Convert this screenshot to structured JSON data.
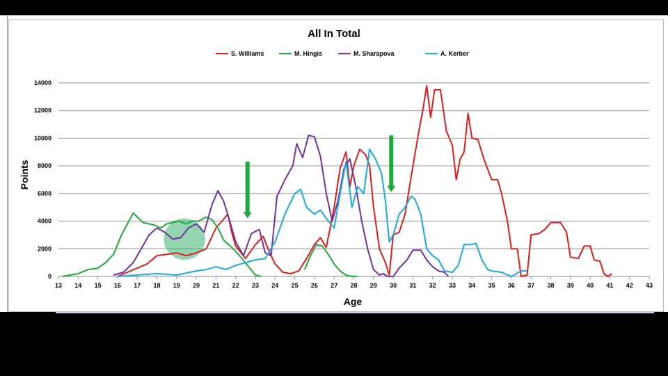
{
  "chart_data": {
    "type": "line",
    "title": "All In Total",
    "xlabel": "Age",
    "ylabel": "Points",
    "xlim": [
      13,
      43
    ],
    "ylim": [
      0,
      14000
    ],
    "x_ticks": [
      "13",
      "14",
      "15",
      "16",
      "17",
      "18",
      "19",
      "20",
      "21",
      "22",
      "23",
      "24",
      "25",
      "26",
      "27",
      "28",
      "29",
      "30",
      "31",
      "32",
      "33",
      "34",
      "35",
      "36",
      "37",
      "38",
      "39",
      "40",
      "41",
      "42",
      "43"
    ],
    "y_ticks": [
      "0",
      "2000",
      "4000",
      "6000",
      "8000",
      "10000",
      "12000",
      "14000"
    ],
    "grid": "horizontal",
    "legend_position": "top",
    "series": [
      {
        "name": "S. Williams",
        "color": "#e31a1c",
        "points": [
          [
            16.0,
            0
          ],
          [
            16.5,
            300
          ],
          [
            17.0,
            600
          ],
          [
            17.5,
            900
          ],
          [
            18.0,
            1500
          ],
          [
            18.5,
            1600
          ],
          [
            19.0,
            1700
          ],
          [
            19.5,
            1500
          ],
          [
            20.0,
            1700
          ],
          [
            20.5,
            2000
          ],
          [
            21.0,
            3500
          ],
          [
            21.3,
            4000
          ],
          [
            21.6,
            4500
          ],
          [
            21.8,
            3200
          ],
          [
            22.0,
            2200
          ],
          [
            22.5,
            1300
          ],
          [
            23.0,
            2300
          ],
          [
            23.4,
            2900
          ],
          [
            23.7,
            1800
          ],
          [
            24.0,
            900
          ],
          [
            24.4,
            300
          ],
          [
            24.8,
            200
          ],
          [
            25.2,
            400
          ],
          [
            25.6,
            1300
          ],
          [
            26.0,
            2300
          ],
          [
            26.3,
            2800
          ],
          [
            26.6,
            2100
          ],
          [
            27.0,
            5000
          ],
          [
            27.3,
            7800
          ],
          [
            27.6,
            9000
          ],
          [
            27.8,
            6500
          ],
          [
            28.0,
            8000
          ],
          [
            28.3,
            9200
          ],
          [
            28.6,
            8800
          ],
          [
            28.8,
            8000
          ],
          [
            29.0,
            5000
          ],
          [
            29.3,
            2000
          ],
          [
            29.6,
            1000
          ],
          [
            29.8,
            100
          ],
          [
            30.0,
            3000
          ],
          [
            30.3,
            3200
          ],
          [
            30.6,
            4500
          ],
          [
            31.0,
            8000
          ],
          [
            31.3,
            10500
          ],
          [
            31.5,
            12000
          ],
          [
            31.7,
            13800
          ],
          [
            31.9,
            11500
          ],
          [
            32.1,
            13500
          ],
          [
            32.4,
            13500
          ],
          [
            32.7,
            10500
          ],
          [
            33.0,
            9500
          ],
          [
            33.2,
            7000
          ],
          [
            33.4,
            8500
          ],
          [
            33.6,
            9000
          ],
          [
            33.8,
            11800
          ],
          [
            34.0,
            10000
          ],
          [
            34.3,
            9900
          ],
          [
            34.6,
            8500
          ],
          [
            35.0,
            7000
          ],
          [
            35.3,
            7000
          ],
          [
            35.5,
            6000
          ],
          [
            35.8,
            4000
          ],
          [
            36.0,
            2000
          ],
          [
            36.3,
            2000
          ],
          [
            36.5,
            0
          ],
          [
            36.8,
            100
          ],
          [
            37.0,
            3000
          ],
          [
            37.4,
            3100
          ],
          [
            37.7,
            3400
          ],
          [
            38.0,
            3900
          ],
          [
            38.5,
            3900
          ],
          [
            38.8,
            3200
          ],
          [
            39.0,
            1400
          ],
          [
            39.4,
            1300
          ],
          [
            39.7,
            2200
          ],
          [
            40.0,
            2200
          ],
          [
            40.2,
            1200
          ],
          [
            40.5,
            1100
          ],
          [
            40.7,
            200
          ],
          [
            40.9,
            0
          ],
          [
            41.1,
            200
          ]
        ]
      },
      {
        "name": "M. Hingis",
        "color": "#1fa83c",
        "points": [
          [
            13.2,
            0
          ],
          [
            14.0,
            200
          ],
          [
            14.5,
            500
          ],
          [
            15.0,
            600
          ],
          [
            15.4,
            1000
          ],
          [
            15.8,
            1600
          ],
          [
            16.2,
            3000
          ],
          [
            16.5,
            3800
          ],
          [
            16.8,
            4600
          ],
          [
            17.0,
            4300
          ],
          [
            17.3,
            3900
          ],
          [
            17.6,
            3800
          ],
          [
            17.9,
            3700
          ],
          [
            18.2,
            3500
          ],
          [
            18.5,
            3800
          ],
          [
            18.8,
            3900
          ],
          [
            19.1,
            4000
          ],
          [
            19.5,
            3800
          ],
          [
            19.8,
            4000
          ],
          [
            20.1,
            4000
          ],
          [
            20.5,
            4300
          ],
          [
            20.8,
            4100
          ],
          [
            21.1,
            3500
          ],
          [
            21.4,
            2600
          ],
          [
            21.8,
            2100
          ],
          [
            22.2,
            1500
          ],
          [
            22.6,
            800
          ],
          [
            23.0,
            100
          ],
          [
            23.3,
            0
          ]
        ],
        "points_b": [
          [
            25.5,
            500
          ],
          [
            25.8,
            1500
          ],
          [
            26.1,
            2300
          ],
          [
            26.4,
            2200
          ],
          [
            26.7,
            1600
          ],
          [
            27.0,
            900
          ],
          [
            27.3,
            400
          ],
          [
            27.6,
            100
          ],
          [
            27.9,
            0
          ],
          [
            28.2,
            0
          ]
        ]
      },
      {
        "name": "M. Sharapova",
        "color": "#7030a0",
        "points": [
          [
            15.8,
            100
          ],
          [
            16.3,
            300
          ],
          [
            16.8,
            1000
          ],
          [
            17.2,
            2000
          ],
          [
            17.6,
            3000
          ],
          [
            18.0,
            3500
          ],
          [
            18.4,
            3200
          ],
          [
            18.8,
            2700
          ],
          [
            19.2,
            2800
          ],
          [
            19.6,
            3500
          ],
          [
            20.0,
            3800
          ],
          [
            20.4,
            3200
          ],
          [
            20.8,
            5200
          ],
          [
            21.1,
            6200
          ],
          [
            21.4,
            5400
          ],
          [
            21.7,
            4000
          ],
          [
            22.0,
            2500
          ],
          [
            22.4,
            1500
          ],
          [
            22.8,
            3100
          ],
          [
            23.2,
            3400
          ],
          [
            23.5,
            1700
          ],
          [
            23.8,
            1500
          ],
          [
            24.1,
            5800
          ],
          [
            24.5,
            7000
          ],
          [
            24.9,
            8000
          ],
          [
            25.1,
            9600
          ],
          [
            25.4,
            8600
          ],
          [
            25.7,
            10200
          ],
          [
            26.0,
            10100
          ],
          [
            26.3,
            8700
          ],
          [
            26.6,
            6000
          ],
          [
            26.9,
            4000
          ],
          [
            27.2,
            5500
          ],
          [
            27.5,
            7800
          ],
          [
            27.8,
            8500
          ],
          [
            28.1,
            6500
          ],
          [
            28.4,
            4000
          ],
          [
            28.7,
            2000
          ],
          [
            29.0,
            500
          ],
          [
            29.3,
            100
          ],
          [
            29.5,
            200
          ],
          [
            29.7,
            0
          ],
          [
            30.0,
            0
          ],
          [
            30.3,
            600
          ],
          [
            30.7,
            1200
          ],
          [
            31.0,
            1900
          ],
          [
            31.4,
            1900
          ],
          [
            31.7,
            1200
          ],
          [
            32.0,
            700
          ],
          [
            32.3,
            400
          ],
          [
            32.6,
            300
          ],
          [
            32.8,
            0
          ]
        ]
      },
      {
        "name": "A. Kerber",
        "color": "#18a9e0",
        "points": [
          [
            16.0,
            0
          ],
          [
            17.0,
            100
          ],
          [
            18.0,
            200
          ],
          [
            19.0,
            100
          ],
          [
            20.0,
            400
          ],
          [
            20.5,
            500
          ],
          [
            21.0,
            700
          ],
          [
            21.5,
            500
          ],
          [
            22.0,
            800
          ],
          [
            22.5,
            1000
          ],
          [
            23.0,
            1200
          ],
          [
            23.5,
            1300
          ],
          [
            24.0,
            2500
          ],
          [
            24.5,
            4500
          ],
          [
            25.0,
            6000
          ],
          [
            25.3,
            6300
          ],
          [
            25.6,
            5000
          ],
          [
            26.0,
            4500
          ],
          [
            26.3,
            4800
          ],
          [
            26.6,
            4200
          ],
          [
            27.0,
            3500
          ],
          [
            27.3,
            6000
          ],
          [
            27.6,
            8300
          ],
          [
            27.9,
            5000
          ],
          [
            28.2,
            6500
          ],
          [
            28.5,
            6000
          ],
          [
            28.8,
            9200
          ],
          [
            29.1,
            8500
          ],
          [
            29.4,
            7500
          ],
          [
            29.6,
            5500
          ],
          [
            29.8,
            2500
          ],
          [
            30.0,
            3000
          ],
          [
            30.3,
            4500
          ],
          [
            30.6,
            5000
          ],
          [
            30.9,
            5800
          ],
          [
            31.1,
            5600
          ],
          [
            31.4,
            4500
          ],
          [
            31.7,
            2000
          ],
          [
            32.0,
            1500
          ],
          [
            32.3,
            1200
          ],
          [
            32.6,
            400
          ],
          [
            33.0,
            300
          ],
          [
            33.3,
            800
          ],
          [
            33.6,
            2300
          ],
          [
            34.0,
            2300
          ],
          [
            34.2,
            2400
          ],
          [
            34.5,
            1200
          ],
          [
            34.8,
            500
          ],
          [
            35.0,
            400
          ],
          [
            35.5,
            300
          ],
          [
            36.0,
            0
          ],
          [
            36.5,
            400
          ],
          [
            36.8,
            400
          ]
        ]
      }
    ],
    "annotations": [
      {
        "kind": "arrow-down",
        "color": "#1fa83c",
        "x": 22.6,
        "y_top": 8300,
        "y_bottom": 4200
      },
      {
        "kind": "arrow-down",
        "color": "#1fa83c",
        "x": 29.9,
        "y_top": 10200,
        "y_bottom": 6100
      },
      {
        "kind": "highlight-circle",
        "color": "#3cb371",
        "cx": 19.4,
        "cy": 2700,
        "r_age": 1.05
      }
    ]
  }
}
